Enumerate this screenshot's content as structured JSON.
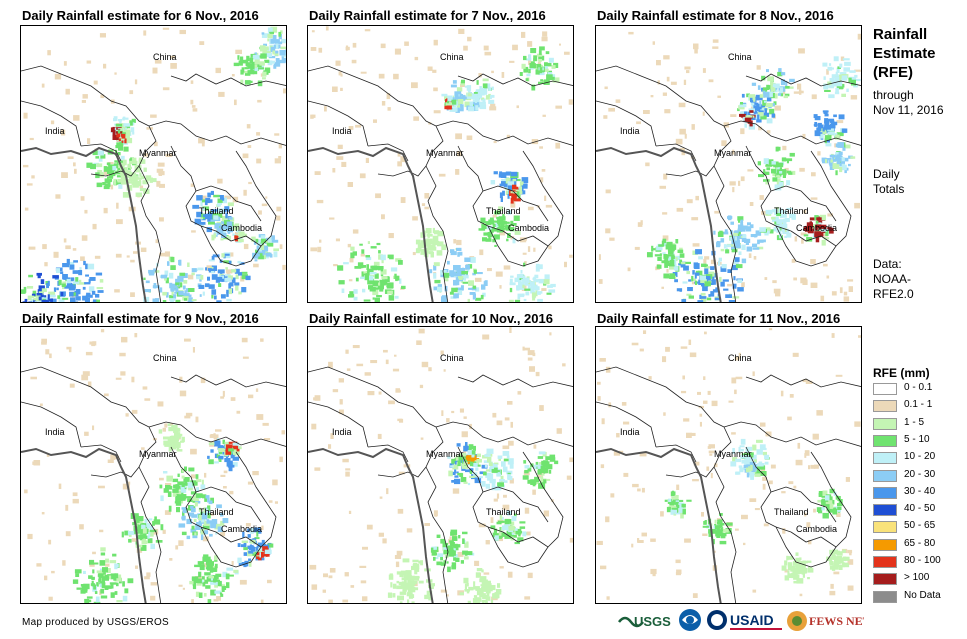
{
  "panels": [
    {
      "title": "Daily Rainfall estimate for 6 Nov., 2016"
    },
    {
      "title": "Daily Rainfall estimate for 7 Nov., 2016"
    },
    {
      "title": "Daily Rainfall estimate for 8 Nov., 2016"
    },
    {
      "title": "Daily Rainfall estimate for 9 Nov., 2016"
    },
    {
      "title": "Daily Rainfall estimate for 10 Nov., 2016"
    },
    {
      "title": "Daily Rainfall estimate for 11 Nov., 2016"
    }
  ],
  "place_labels": {
    "china": "China",
    "india": "India",
    "myanmar": "Myanmar",
    "thailand": "Thailand",
    "cambodia": "Cambodia"
  },
  "sidebar": {
    "title_line1": "Rainfall",
    "title_line2": "Estimate",
    "title_line3": "(RFE)",
    "through_line1": "through",
    "through_line2": "Nov 11, 2016",
    "daily_line1": "Daily",
    "daily_line2": "Totals",
    "data_line1": "Data:",
    "data_line2": "NOAA-",
    "data_line3": "RFE2.0"
  },
  "legend": {
    "title": "RFE (mm)",
    "items": [
      {
        "label": "0 - 0.1",
        "color": "#ffffff"
      },
      {
        "label": "0.1 - 1",
        "color": "#ecd9b9"
      },
      {
        "label": "1 - 5",
        "color": "#c4f5b4"
      },
      {
        "label": "5 - 10",
        "color": "#6fe36f"
      },
      {
        "label": "10 - 20",
        "color": "#bff0f7"
      },
      {
        "label": "20 - 30",
        "color": "#8ccdf5"
      },
      {
        "label": "30 - 40",
        "color": "#4a97ec"
      },
      {
        "label": "40 - 50",
        "color": "#1f4fd4"
      },
      {
        "label": "50 - 65",
        "color": "#f9e27a"
      },
      {
        "label": "65 - 80",
        "color": "#f59a00"
      },
      {
        "label": "80 - 100",
        "color": "#e3331b"
      },
      {
        "label": "> 100",
        "color": "#a51d1d"
      },
      {
        "label": "No Data",
        "color": "#8c8c8c"
      }
    ]
  },
  "credit": "Map produced by USGS/EROS",
  "logos": {
    "usgs": "USGS",
    "usaid": "USAID",
    "fewsnet": "FEWS NET"
  }
}
